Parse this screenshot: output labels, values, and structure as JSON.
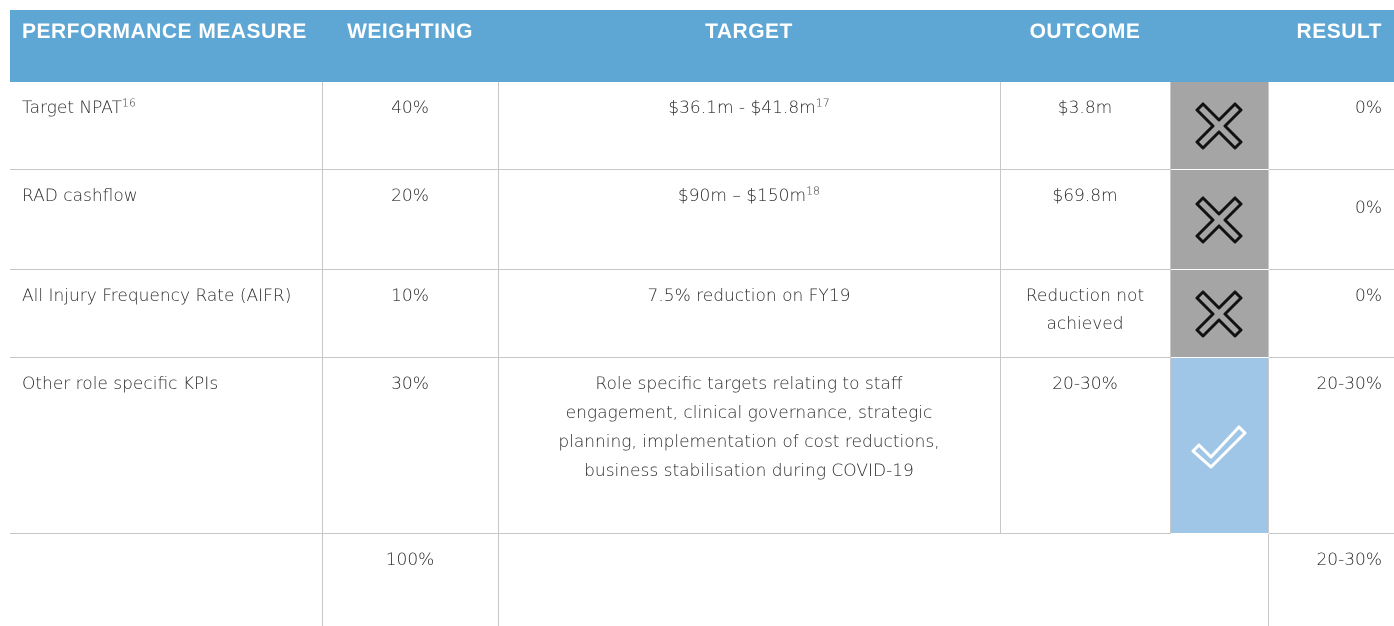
{
  "table": {
    "header": [
      "PERFORMANCE MEASURE",
      "WEIGHTING",
      "TARGET",
      "OUTCOME",
      "RESULT"
    ],
    "rows": [
      {
        "measure": {
          "text": "Target NPAT",
          "sup": "16"
        },
        "weighting": "40%",
        "target": {
          "text": "$36.1m - $41.8m",
          "sup": "17"
        },
        "outcome": "$3.8m",
        "result": "0%"
      },
      {
        "measure": {
          "text": "RAD cashflow"
        },
        "weighting": "20%",
        "target": {
          "text": "$90m – $150m",
          "sup": "18"
        },
        "outcome": "$69.8m",
        "result": "0%"
      },
      {
        "measure": {
          "text": "All Injury Frequency Rate (AIFR)"
        },
        "weighting": "10%",
        "target": {
          "text": "7.5% reduction on FY19"
        },
        "outcome": "Reduction not achieved",
        "result": "0%"
      },
      {
        "measure": {
          "text": "Other role specific KPIs"
        },
        "weighting": "30%",
        "target": {
          "text": "Role specific targets relating to staff engagement, clinical governance, strategic planning, implementation of cost reductions, business stabilisation during COVID-19"
        },
        "outcome": "20-30%",
        "result": "20-30%"
      }
    ],
    "total": {
      "weighting": "100%",
      "result": "20-30%"
    }
  }
}
